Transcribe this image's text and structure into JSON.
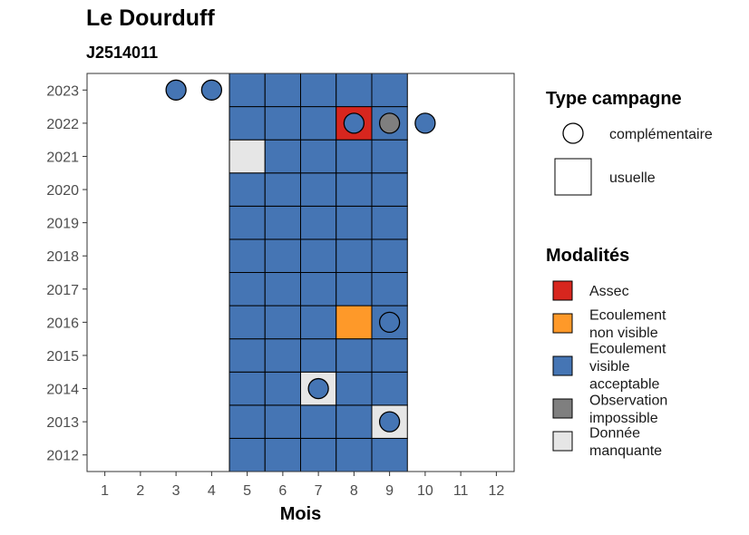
{
  "header": {
    "title": "Le Dourduff",
    "subtitle": "J2514011"
  },
  "colors": {
    "Assec": "#d7261e",
    "Ecoulement non visible": "#fe9929",
    "Ecoulement visible acceptable": "#4575b4",
    "Observation impossible": "#7f7f7f",
    "Donnée manquante": "#e6e6e6"
  },
  "chart_data": {
    "type": "heatmap",
    "xlabel": "Mois",
    "ylabel": "",
    "x_ticks": [
      1,
      2,
      3,
      4,
      5,
      6,
      7,
      8,
      9,
      10,
      11,
      12
    ],
    "y_ticks": [
      2012,
      2013,
      2014,
      2015,
      2016,
      2017,
      2018,
      2019,
      2020,
      2021,
      2022,
      2023
    ],
    "xlim": [
      0.5,
      12.5
    ],
    "ylim": [
      2011.5,
      2023.5
    ],
    "grid": false,
    "legend_position": "right",
    "usuelle": [
      {
        "year": 2012,
        "month": 5,
        "modalite": "Ecoulement visible acceptable"
      },
      {
        "year": 2012,
        "month": 6,
        "modalite": "Ecoulement visible acceptable"
      },
      {
        "year": 2012,
        "month": 7,
        "modalite": "Ecoulement visible acceptable"
      },
      {
        "year": 2012,
        "month": 8,
        "modalite": "Ecoulement visible acceptable"
      },
      {
        "year": 2012,
        "month": 9,
        "modalite": "Ecoulement visible acceptable"
      },
      {
        "year": 2013,
        "month": 5,
        "modalite": "Ecoulement visible acceptable"
      },
      {
        "year": 2013,
        "month": 6,
        "modalite": "Ecoulement visible acceptable"
      },
      {
        "year": 2013,
        "month": 7,
        "modalite": "Ecoulement visible acceptable"
      },
      {
        "year": 2013,
        "month": 8,
        "modalite": "Ecoulement visible acceptable"
      },
      {
        "year": 2013,
        "month": 9,
        "modalite": "Donnée manquante"
      },
      {
        "year": 2014,
        "month": 5,
        "modalite": "Ecoulement visible acceptable"
      },
      {
        "year": 2014,
        "month": 6,
        "modalite": "Ecoulement visible acceptable"
      },
      {
        "year": 2014,
        "month": 7,
        "modalite": "Donnée manquante"
      },
      {
        "year": 2014,
        "month": 8,
        "modalite": "Ecoulement visible acceptable"
      },
      {
        "year": 2014,
        "month": 9,
        "modalite": "Ecoulement visible acceptable"
      },
      {
        "year": 2015,
        "month": 5,
        "modalite": "Ecoulement visible acceptable"
      },
      {
        "year": 2015,
        "month": 6,
        "modalite": "Ecoulement visible acceptable"
      },
      {
        "year": 2015,
        "month": 7,
        "modalite": "Ecoulement visible acceptable"
      },
      {
        "year": 2015,
        "month": 8,
        "modalite": "Ecoulement visible acceptable"
      },
      {
        "year": 2015,
        "month": 9,
        "modalite": "Ecoulement visible acceptable"
      },
      {
        "year": 2016,
        "month": 5,
        "modalite": "Ecoulement visible acceptable"
      },
      {
        "year": 2016,
        "month": 6,
        "modalite": "Ecoulement visible acceptable"
      },
      {
        "year": 2016,
        "month": 7,
        "modalite": "Ecoulement visible acceptable"
      },
      {
        "year": 2016,
        "month": 8,
        "modalite": "Ecoulement non visible"
      },
      {
        "year": 2016,
        "month": 9,
        "modalite": "Ecoulement visible acceptable"
      },
      {
        "year": 2017,
        "month": 5,
        "modalite": "Ecoulement visible acceptable"
      },
      {
        "year": 2017,
        "month": 6,
        "modalite": "Ecoulement visible acceptable"
      },
      {
        "year": 2017,
        "month": 7,
        "modalite": "Ecoulement visible acceptable"
      },
      {
        "year": 2017,
        "month": 8,
        "modalite": "Ecoulement visible acceptable"
      },
      {
        "year": 2017,
        "month": 9,
        "modalite": "Ecoulement visible acceptable"
      },
      {
        "year": 2018,
        "month": 5,
        "modalite": "Ecoulement visible acceptable"
      },
      {
        "year": 2018,
        "month": 6,
        "modalite": "Ecoulement visible acceptable"
      },
      {
        "year": 2018,
        "month": 7,
        "modalite": "Ecoulement visible acceptable"
      },
      {
        "year": 2018,
        "month": 8,
        "modalite": "Ecoulement visible acceptable"
      },
      {
        "year": 2018,
        "month": 9,
        "modalite": "Ecoulement visible acceptable"
      },
      {
        "year": 2019,
        "month": 5,
        "modalite": "Ecoulement visible acceptable"
      },
      {
        "year": 2019,
        "month": 6,
        "modalite": "Ecoulement visible acceptable"
      },
      {
        "year": 2019,
        "month": 7,
        "modalite": "Ecoulement visible acceptable"
      },
      {
        "year": 2019,
        "month": 8,
        "modalite": "Ecoulement visible acceptable"
      },
      {
        "year": 2019,
        "month": 9,
        "modalite": "Ecoulement visible acceptable"
      },
      {
        "year": 2020,
        "month": 5,
        "modalite": "Ecoulement visible acceptable"
      },
      {
        "year": 2020,
        "month": 6,
        "modalite": "Ecoulement visible acceptable"
      },
      {
        "year": 2020,
        "month": 7,
        "modalite": "Ecoulement visible acceptable"
      },
      {
        "year": 2020,
        "month": 8,
        "modalite": "Ecoulement visible acceptable"
      },
      {
        "year": 2020,
        "month": 9,
        "modalite": "Ecoulement visible acceptable"
      },
      {
        "year": 2021,
        "month": 5,
        "modalite": "Donnée manquante"
      },
      {
        "year": 2021,
        "month": 6,
        "modalite": "Ecoulement visible acceptable"
      },
      {
        "year": 2021,
        "month": 7,
        "modalite": "Ecoulement visible acceptable"
      },
      {
        "year": 2021,
        "month": 8,
        "modalite": "Ecoulement visible acceptable"
      },
      {
        "year": 2021,
        "month": 9,
        "modalite": "Ecoulement visible acceptable"
      },
      {
        "year": 2022,
        "month": 5,
        "modalite": "Ecoulement visible acceptable"
      },
      {
        "year": 2022,
        "month": 6,
        "modalite": "Ecoulement visible acceptable"
      },
      {
        "year": 2022,
        "month": 7,
        "modalite": "Ecoulement visible acceptable"
      },
      {
        "year": 2022,
        "month": 8,
        "modalite": "Assec"
      },
      {
        "year": 2022,
        "month": 9,
        "modalite": "Ecoulement visible acceptable"
      },
      {
        "year": 2023,
        "month": 5,
        "modalite": "Ecoulement visible acceptable"
      },
      {
        "year": 2023,
        "month": 6,
        "modalite": "Ecoulement visible acceptable"
      },
      {
        "year": 2023,
        "month": 7,
        "modalite": "Ecoulement visible acceptable"
      },
      {
        "year": 2023,
        "month": 8,
        "modalite": "Ecoulement visible acceptable"
      },
      {
        "year": 2023,
        "month": 9,
        "modalite": "Ecoulement visible acceptable"
      }
    ],
    "complementaire": [
      {
        "year": 2023,
        "month": 3,
        "modalite": "Ecoulement visible acceptable"
      },
      {
        "year": 2023,
        "month": 4,
        "modalite": "Ecoulement visible acceptable"
      },
      {
        "year": 2022,
        "month": 8,
        "modalite": "Ecoulement visible acceptable"
      },
      {
        "year": 2022,
        "month": 9,
        "modalite": "Observation impossible"
      },
      {
        "year": 2022,
        "month": 10,
        "modalite": "Ecoulement visible acceptable"
      },
      {
        "year": 2016,
        "month": 9,
        "modalite": "Ecoulement visible acceptable"
      },
      {
        "year": 2014,
        "month": 7,
        "modalite": "Ecoulement visible acceptable"
      },
      {
        "year": 2013,
        "month": 9,
        "modalite": "Ecoulement visible acceptable"
      }
    ],
    "legend_type": {
      "title": "Type campagne",
      "items": [
        "complémentaire",
        "usuelle"
      ]
    },
    "legend_modalites": {
      "title": "Modalités",
      "items": [
        {
          "key": "Assec",
          "lines": [
            "Assec"
          ]
        },
        {
          "key": "Ecoulement non visible",
          "lines": [
            "Ecoulement",
            "non visible"
          ]
        },
        {
          "key": "Ecoulement visible acceptable",
          "lines": [
            "Ecoulement",
            "visible",
            "acceptable"
          ]
        },
        {
          "key": "Observation impossible",
          "lines": [
            "Observation",
            "impossible"
          ]
        },
        {
          "key": "Donnée manquante",
          "lines": [
            "Donnée",
            "manquante"
          ]
        }
      ]
    }
  }
}
